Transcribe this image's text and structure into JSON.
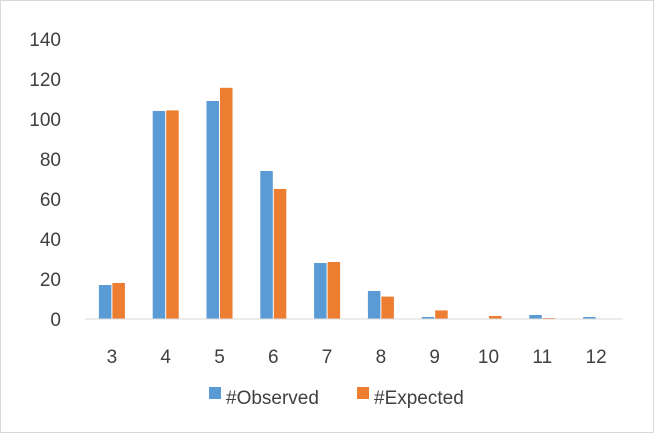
{
  "chart_data": {
    "type": "bar",
    "title": "",
    "xlabel": "",
    "ylabel": "",
    "categories": [
      "3",
      "4",
      "5",
      "6",
      "7",
      "8",
      "9",
      "10",
      "11",
      "12"
    ],
    "series": [
      {
        "name": "#Observed",
        "color": "#5b9bd5",
        "values": [
          17,
          104,
          109,
          74,
          28,
          14,
          1,
          0,
          2,
          1
        ]
      },
      {
        "name": "#Expected",
        "color": "#ed7d31",
        "values": [
          18,
          104.3,
          115.6,
          65,
          28.5,
          11.2,
          4.3,
          1.5,
          0.5,
          0.1
        ]
      }
    ],
    "ylim": [
      0,
      140
    ],
    "yticks": [
      0,
      20,
      40,
      60,
      80,
      100,
      120,
      140
    ],
    "grid": false,
    "legend_position": "bottom"
  }
}
